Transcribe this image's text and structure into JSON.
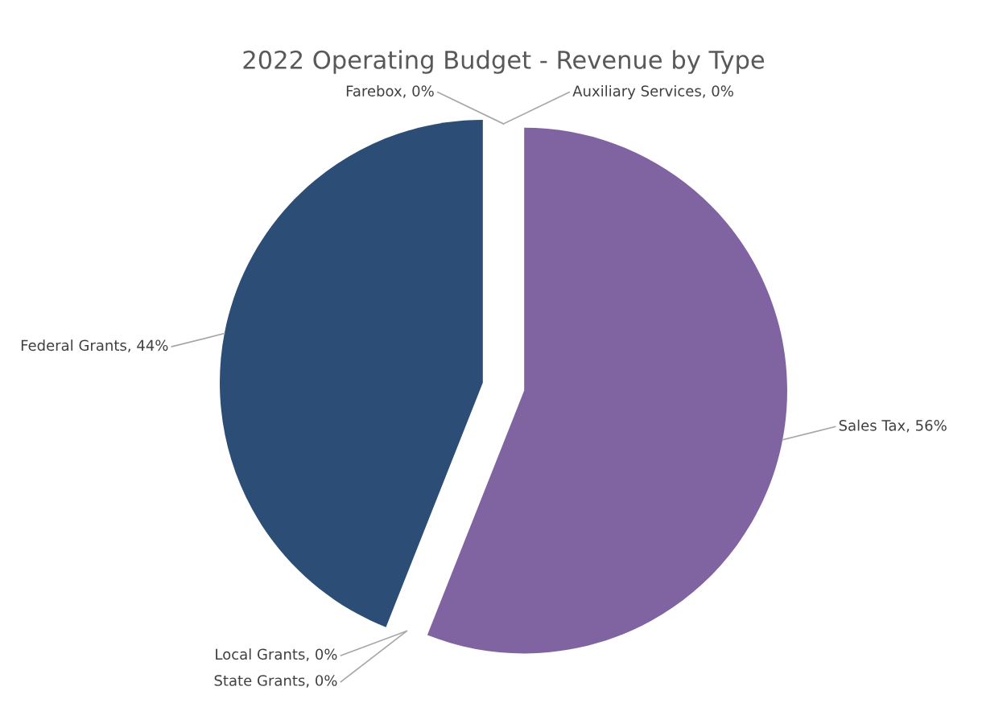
{
  "chart_data": {
    "type": "pie",
    "title": "2022 Operating Budget - Revenue by Type",
    "categories": [
      "Farebox",
      "Auxiliary Services",
      "Sales Tax",
      "Local Grants",
      "State Grants",
      "Federal Grants"
    ],
    "values": [
      0,
      0,
      56,
      0,
      0,
      44
    ],
    "colors": [
      "#4472c4",
      "#ed7d31",
      "#8064a2",
      "#a5a5a5",
      "#ffc000",
      "#2c4d75"
    ],
    "value_labels": [
      ", 0%",
      ", 0%",
      ", 56%",
      ", 0%",
      ", 0%",
      ", 44%"
    ],
    "legend": false
  }
}
